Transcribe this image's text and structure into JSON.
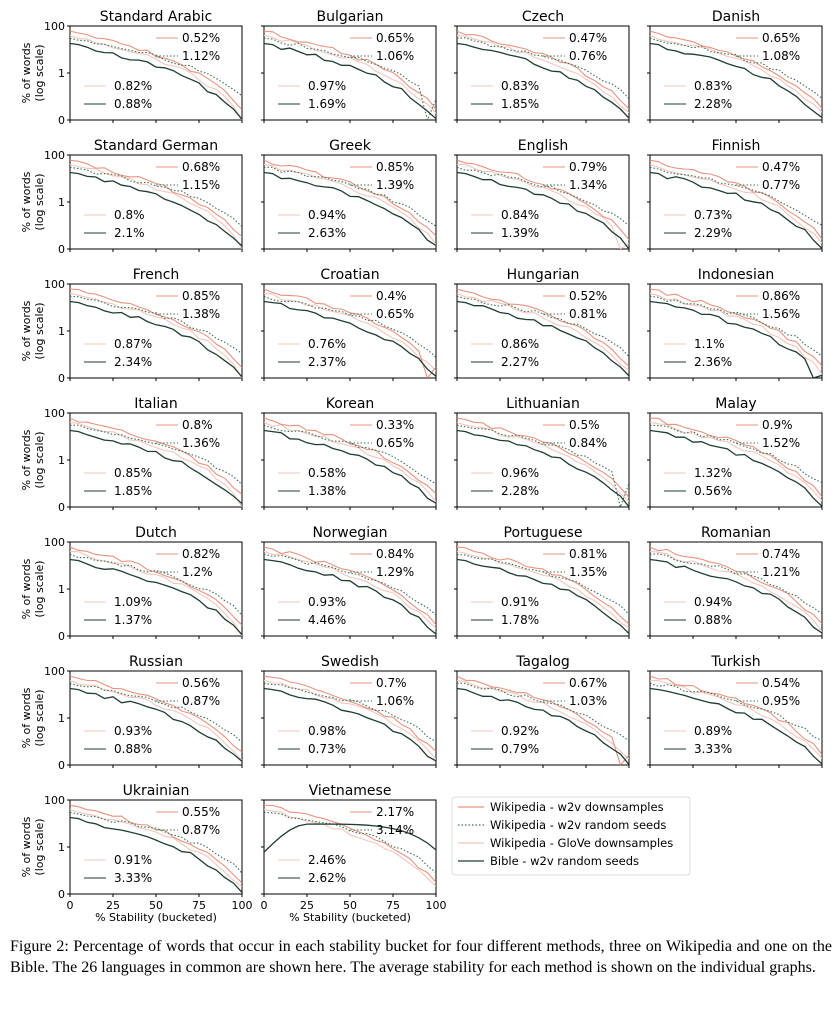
{
  "caption": "Figure 2: Percentage of words that occur in each stability bucket for four different methods, three on Wikipedia and one on the Bible. The 26 languages in common are shown here. The average stability for each method is shown on the individual graphs.",
  "chart_data": {
    "type": "line",
    "xlabel": "% Stability (bucketed)",
    "ylabel_line1": "% of words",
    "ylabel_line2": "(log scale)",
    "xticks": [
      "0",
      "25",
      "50",
      "75",
      "100"
    ],
    "yticks": [
      "100",
      "1",
      "0"
    ],
    "xlim": [
      0,
      100
    ],
    "yscale": "log",
    "series": [
      {
        "name": "Wikipedia - w2v downsamples",
        "color": "#e8937e",
        "dash": "solid"
      },
      {
        "name": "Wikipedia - w2v random seeds",
        "color": "#3c6e52",
        "dash": "dotted"
      },
      {
        "name": "Wikipedia - GloVe downsamples",
        "color": "#f1c7bf",
        "dash": "solid"
      },
      {
        "name": "Bible - w2v random seeds",
        "color": "#1f3d30",
        "dash": "solid"
      }
    ],
    "legend_position": "bottom-right-empty-panels",
    "panels": [
      {
        "language": "Standard Arabic",
        "averages": [
          "0.52%",
          "1.12%",
          "0.82%",
          "0.88%"
        ]
      },
      {
        "language": "Bulgarian",
        "averages": [
          "0.65%",
          "1.06%",
          "0.97%",
          "1.69%"
        ]
      },
      {
        "language": "Czech",
        "averages": [
          "0.47%",
          "0.76%",
          "0.83%",
          "1.85%"
        ]
      },
      {
        "language": "Danish",
        "averages": [
          "0.65%",
          "1.08%",
          "0.83%",
          "2.28%"
        ]
      },
      {
        "language": "Standard German",
        "averages": [
          "0.68%",
          "1.15%",
          "0.8%",
          "2.1%"
        ]
      },
      {
        "language": "Greek",
        "averages": [
          "0.85%",
          "1.39%",
          "0.94%",
          "2.63%"
        ]
      },
      {
        "language": "English",
        "averages": [
          "0.79%",
          "1.34%",
          "0.84%",
          "1.39%"
        ]
      },
      {
        "language": "Finnish",
        "averages": [
          "0.47%",
          "0.77%",
          "0.73%",
          "2.29%"
        ]
      },
      {
        "language": "French",
        "averages": [
          "0.85%",
          "1.38%",
          "0.87%",
          "2.34%"
        ]
      },
      {
        "language": "Croatian",
        "averages": [
          "0.4%",
          "0.65%",
          "0.76%",
          "2.37%"
        ]
      },
      {
        "language": "Hungarian",
        "averages": [
          "0.52%",
          "0.81%",
          "0.86%",
          "2.27%"
        ]
      },
      {
        "language": "Indonesian",
        "averages": [
          "0.86%",
          "1.56%",
          "1.1%",
          "2.36%"
        ]
      },
      {
        "language": "Italian",
        "averages": [
          "0.8%",
          "1.36%",
          "0.85%",
          "1.85%"
        ]
      },
      {
        "language": "Korean",
        "averages": [
          "0.33%",
          "0.65%",
          "0.58%",
          "1.38%"
        ]
      },
      {
        "language": "Lithuanian",
        "averages": [
          "0.5%",
          "0.84%",
          "0.96%",
          "2.28%"
        ]
      },
      {
        "language": "Malay",
        "averages": [
          "0.9%",
          "1.52%",
          "1.32%",
          "0.56%"
        ]
      },
      {
        "language": "Dutch",
        "averages": [
          "0.82%",
          "1.2%",
          "1.09%",
          "1.37%"
        ]
      },
      {
        "language": "Norwegian",
        "averages": [
          "0.84%",
          "1.29%",
          "0.93%",
          "4.46%"
        ]
      },
      {
        "language": "Portuguese",
        "averages": [
          "0.81%",
          "1.35%",
          "0.91%",
          "1.78%"
        ]
      },
      {
        "language": "Romanian",
        "averages": [
          "0.74%",
          "1.21%",
          "0.94%",
          "0.88%"
        ]
      },
      {
        "language": "Russian",
        "averages": [
          "0.56%",
          "0.87%",
          "0.93%",
          "0.88%"
        ]
      },
      {
        "language": "Swedish",
        "averages": [
          "0.7%",
          "1.06%",
          "0.98%",
          "0.73%"
        ]
      },
      {
        "language": "Tagalog",
        "averages": [
          "0.67%",
          "1.03%",
          "0.92%",
          "0.79%"
        ]
      },
      {
        "language": "Turkish",
        "averages": [
          "0.54%",
          "0.95%",
          "0.89%",
          "3.33%"
        ]
      },
      {
        "language": "Ukrainian",
        "averages": [
          "0.55%",
          "0.87%",
          "0.91%",
          "3.33%"
        ]
      },
      {
        "language": "Vietnamese",
        "averages": [
          "2.17%",
          "3.14%",
          "2.46%",
          "2.62%"
        ]
      }
    ]
  }
}
